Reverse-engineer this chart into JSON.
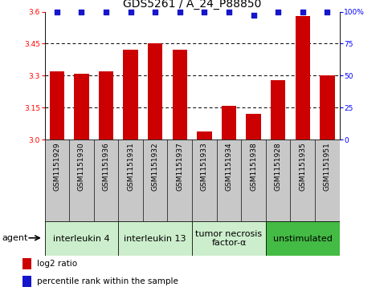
{
  "title": "GDS5261 / A_24_P88850",
  "samples": [
    "GSM1151929",
    "GSM1151930",
    "GSM1151936",
    "GSM1151931",
    "GSM1151932",
    "GSM1151937",
    "GSM1151933",
    "GSM1151934",
    "GSM1151938",
    "GSM1151928",
    "GSM1151935",
    "GSM1151951"
  ],
  "log2_values": [
    3.32,
    3.31,
    3.32,
    3.42,
    3.45,
    3.42,
    3.04,
    3.16,
    3.12,
    3.28,
    3.58,
    3.3
  ],
  "percentile_values": [
    100,
    100,
    100,
    100,
    100,
    100,
    100,
    100,
    97,
    100,
    100,
    100
  ],
  "ylim_left": [
    3.0,
    3.6
  ],
  "ylim_right": [
    0,
    100
  ],
  "yticks_left": [
    3.0,
    3.15,
    3.3,
    3.45,
    3.6
  ],
  "yticks_right": [
    0,
    25,
    50,
    75,
    100
  ],
  "bar_color": "#cc0000",
  "dot_color": "#1515cc",
  "groups": [
    {
      "label": "interleukin 4",
      "indices": [
        0,
        1,
        2
      ],
      "color": "#cceecc"
    },
    {
      "label": "interleukin 13",
      "indices": [
        3,
        4,
        5
      ],
      "color": "#cceecc"
    },
    {
      "label": "tumor necrosis\nfactor-α",
      "indices": [
        6,
        7,
        8
      ],
      "color": "#cceecc"
    },
    {
      "label": "unstimulated",
      "indices": [
        9,
        10,
        11
      ],
      "color": "#44bb44"
    }
  ],
  "agent_label": "agent",
  "legend_bar_label": "log2 ratio",
  "legend_dot_label": "percentile rank within the sample",
  "title_fontsize": 10,
  "tick_fontsize": 6.5,
  "sample_fontsize": 6.5,
  "group_fontsize": 8,
  "legend_fontsize": 7.5,
  "sample_bg_color": "#c8c8c8"
}
